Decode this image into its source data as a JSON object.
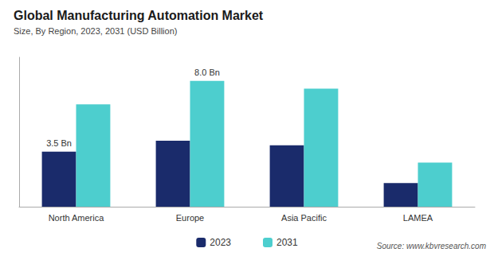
{
  "chart_data": {
    "type": "bar",
    "title": "Global Manufacturing Automation Market",
    "subtitle": "Size, By Region, 2023, 2031 (USD Billion)",
    "categories": [
      "North America",
      "Europe",
      "Asia Pacific",
      "LAMEA"
    ],
    "series": [
      {
        "name": "2023",
        "color": "#1a2b6b",
        "values": [
          3.5,
          4.2,
          3.9,
          1.5
        ]
      },
      {
        "name": "2031",
        "color": "#4dcece",
        "values": [
          6.5,
          8.0,
          7.5,
          2.8
        ]
      }
    ],
    "annotations": [
      {
        "text": "3.5 Bn",
        "series": "2023",
        "category": "North America"
      },
      {
        "text": "8.0 Bn",
        "series": "2031",
        "category": "Europe"
      }
    ],
    "source": "Source: www.kbvresearch.com",
    "ylim": [
      0,
      9.5
    ],
    "grid": false,
    "legend": "bottom",
    "tick_labels": "x"
  }
}
